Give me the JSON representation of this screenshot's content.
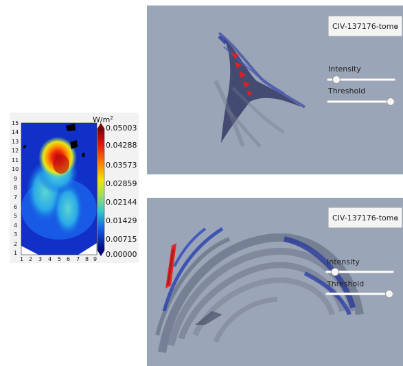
{
  "heatmap": {
    "unit_label": "W/m",
    "unit_exponent": "2",
    "colorbar_ticks": [
      "0.05003",
      "0.04288",
      "0.03573",
      "0.02859",
      "0.02144",
      "0.01429",
      "0.00715",
      "0.00000"
    ],
    "y_ticks": [
      "15",
      "14",
      "13",
      "12",
      "11",
      "10",
      "9",
      "8",
      "7",
      "6",
      "5",
      "4",
      "3",
      "2",
      "1"
    ],
    "x_ticks": [
      "1",
      "2",
      "3",
      "4",
      "5",
      "6",
      "7",
      "8",
      "9"
    ]
  },
  "viewer_top": {
    "dataset_selected": "CIV-137176-tomo",
    "intensity_label": "Intensity",
    "threshold_label": "Threshold",
    "intensity_value": 0.08,
    "threshold_value": 1.0
  },
  "viewer_bottom": {
    "dataset_selected": "CIV-137176-tomo",
    "intensity_label": "Intensity",
    "threshold_label": "Threshold",
    "intensity_value": 0.08,
    "threshold_value": 1.0
  }
}
